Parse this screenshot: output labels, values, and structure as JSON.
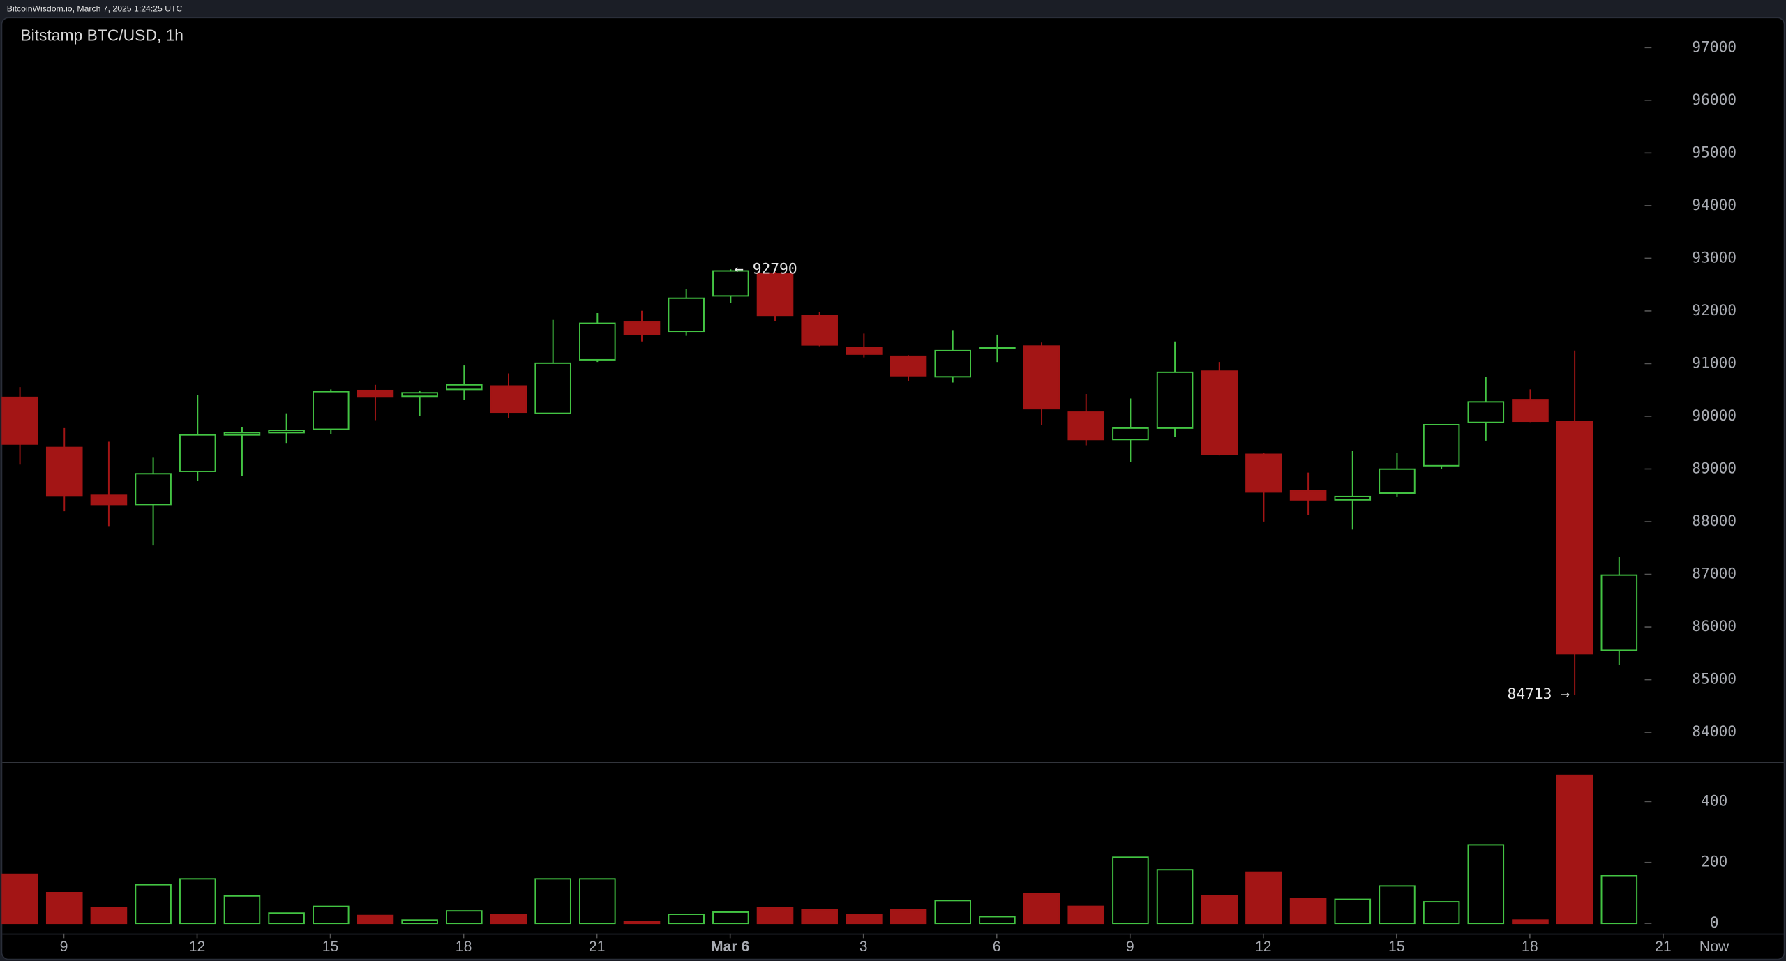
{
  "header": {
    "text": "BitcoinWisdom.io, March 7, 2025 1:24:25 UTC"
  },
  "chart_data": [
    {
      "type": "candlestick",
      "title": "Bitstamp BTC/USD, 1h",
      "up_color": "#43c443",
      "down_color": "#a31515",
      "xlim": [
        -0.36,
        37.74
      ],
      "ylim": [
        83420,
        97580
      ],
      "yticks": [
        84000,
        85000,
        86000,
        87000,
        88000,
        89000,
        90000,
        91000,
        92000,
        93000,
        94000,
        95000,
        96000,
        97000
      ],
      "open": [
        90359,
        89408,
        88499,
        88326,
        88954,
        89646,
        89690,
        89754,
        90490,
        90380,
        90511,
        90576,
        90057,
        91073,
        91787,
        91614,
        92285,
        92700,
        91917,
        91300,
        91140,
        90750,
        91290,
        91333,
        90078,
        89559,
        89776,
        90857,
        89278,
        88586,
        88413,
        88543,
        89062,
        89884,
        90316,
        89906,
        85558
      ],
      "high": [
        90554,
        89776,
        89516,
        89213,
        90403,
        89797,
        90057,
        90511,
        90598,
        90490,
        90965,
        90814,
        91830,
        91960,
        92003,
        92414,
        92790,
        92740,
        91980,
        91570,
        91160,
        91636,
        91550,
        91400,
        90424,
        90338,
        91420,
        91030,
        89300,
        88932,
        89343,
        89300,
        89850,
        90749,
        90511,
        91247,
        87331
      ],
      "low": [
        89083,
        88197,
        87915,
        87548,
        88781,
        88867,
        89494,
        89667,
        89927,
        90013,
        90316,
        89970,
        90057,
        91030,
        91420,
        91527,
        92155,
        91809,
        91330,
        91117,
        90662,
        90641,
        91030,
        89840,
        89450,
        89127,
        89603,
        89257,
        88002,
        88132,
        87850,
        88478,
        88997,
        89538,
        89890,
        84713,
        85277
      ],
      "close": [
        89473,
        88499,
        88326,
        88910,
        89646,
        89690,
        89733,
        90468,
        90380,
        90446,
        90598,
        90078,
        91008,
        91766,
        91549,
        92241,
        92760,
        91917,
        91355,
        91180,
        90771,
        91246,
        91310,
        90143,
        89559,
        89776,
        90836,
        89278,
        88564,
        88413,
        88478,
        88997,
        89841,
        90273,
        89906,
        85493,
        86985
      ],
      "high_annotation": {
        "value": 92790,
        "label": "← 92790"
      },
      "low_annotation": {
        "value": 84713,
        "label": "84713 →"
      }
    },
    {
      "type": "bar",
      "values": [
        161,
        101,
        52,
        127,
        146,
        90,
        34,
        56,
        26,
        11,
        41,
        30,
        146,
        146,
        7,
        30,
        37,
        52,
        45,
        30,
        45,
        75,
        22,
        97,
        56,
        217,
        176,
        90,
        168,
        82,
        79,
        123,
        71,
        258,
        11,
        486,
        157
      ],
      "xlim": [
        -0.36,
        37.74
      ],
      "ylim": [
        0,
        527
      ],
      "yticks": [
        0,
        200,
        400
      ],
      "xticks": [
        {
          "value": 1,
          "label": "9"
        },
        {
          "value": 4,
          "label": "12"
        },
        {
          "value": 7,
          "label": "15"
        },
        {
          "value": 10,
          "label": "18"
        },
        {
          "value": 13,
          "label": "21"
        },
        {
          "value": 16,
          "label": "Mar 6"
        },
        {
          "value": 19,
          "label": "3"
        },
        {
          "value": 22,
          "label": "6"
        },
        {
          "value": 25,
          "label": "9"
        },
        {
          "value": 28,
          "label": "12"
        },
        {
          "value": 31,
          "label": "15"
        },
        {
          "value": 34,
          "label": "18"
        },
        {
          "value": 37,
          "label": "21"
        }
      ],
      "x_end_label": "Now"
    }
  ]
}
